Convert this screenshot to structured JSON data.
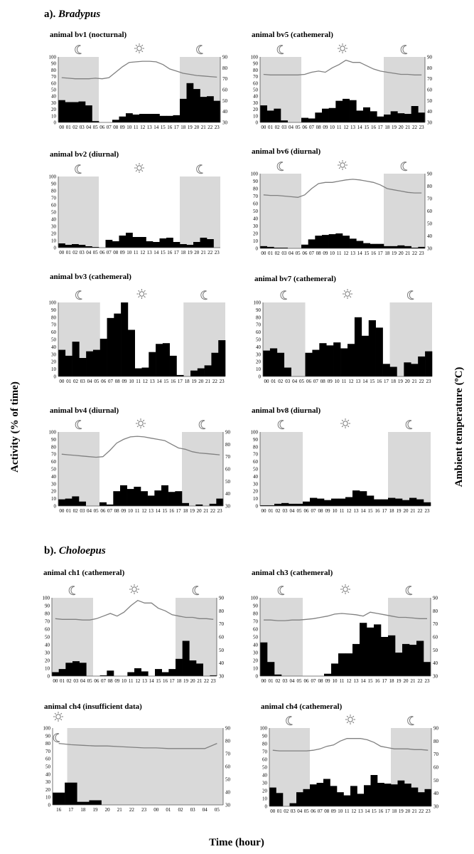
{
  "figure": {
    "y_label_left": "Activity (% of time)",
    "y_label_right": "Ambient temperature (ºC)",
    "x_label": "Time (hour)",
    "sections": [
      {
        "prefix": "a). ",
        "genus": "Bradypus"
      },
      {
        "prefix": "b). ",
        "genus": "Choloepus"
      }
    ]
  },
  "colors": {
    "bar": "#000000",
    "night_shade": "#d9d9d9",
    "temp_line": "#808080",
    "axis": "#555555"
  },
  "icons": {
    "night": "moon-icon",
    "day": "sun-icon"
  },
  "chart_data": [
    {
      "id": "bv1",
      "type": "bar",
      "title": "animal bv1 (nocturnal)",
      "categories": [
        "00",
        "01",
        "02",
        "03",
        "04",
        "05",
        "06",
        "07",
        "08",
        "09",
        "10",
        "11",
        "12",
        "13",
        "14",
        "15",
        "16",
        "17",
        "18",
        "19",
        "20",
        "21",
        "22",
        "23"
      ],
      "values": [
        34,
        31,
        31,
        32,
        26,
        2,
        0,
        0,
        4,
        9,
        14,
        12,
        13,
        13,
        13,
        10,
        10,
        11,
        36,
        60,
        51,
        39,
        40,
        33
      ],
      "temperature": [
        71,
        70.5,
        70,
        70,
        70,
        70.5,
        70,
        71,
        76,
        81,
        85,
        85.5,
        86,
        86,
        85.5,
        83,
        79,
        77,
        75,
        74,
        73,
        72.5,
        72,
        71.5
      ],
      "ylim": [
        0,
        100
      ],
      "y2lim": [
        30,
        90
      ],
      "night": [
        [
          0,
          5
        ],
        [
          18,
          23
        ]
      ]
    },
    {
      "id": "bv5",
      "type": "bar",
      "title": "animal bv5 (cathemeral)",
      "categories": [
        "00",
        "01",
        "02",
        "03",
        "04",
        "05",
        "06",
        "07",
        "08",
        "09",
        "10",
        "11",
        "12",
        "13",
        "14",
        "15",
        "16",
        "17",
        "18",
        "19",
        "20",
        "21",
        "22",
        "23"
      ],
      "values": [
        26,
        18,
        21,
        3,
        0,
        0,
        7,
        6,
        15,
        21,
        22,
        33,
        36,
        34,
        18,
        23,
        17,
        9,
        12,
        17,
        14,
        13,
        25,
        15
      ],
      "temperature": [
        74,
        73.5,
        73.5,
        73.5,
        73.5,
        73.5,
        74,
        76,
        77,
        76,
        80,
        83,
        87,
        85,
        85,
        82,
        79,
        77,
        76,
        75,
        74,
        74,
        73.5,
        73.5
      ],
      "ylim": [
        0,
        100
      ],
      "y2lim": [
        30,
        90
      ],
      "night": [
        [
          0,
          5
        ],
        [
          18,
          23
        ]
      ]
    },
    {
      "id": "bv2",
      "type": "bar",
      "title": "animal bv2 (diurnal)",
      "categories": [
        "00",
        "01",
        "02",
        "03",
        "04",
        "05",
        "06",
        "07",
        "08",
        "09",
        "10",
        "11",
        "12",
        "13",
        "14",
        "15",
        "16",
        "17",
        "18",
        "19",
        "20",
        "21",
        "22",
        "23"
      ],
      "values": [
        6,
        4,
        5,
        4,
        2,
        1,
        0,
        11,
        9,
        17,
        21,
        15,
        15,
        9,
        8,
        13,
        14,
        8,
        5,
        4,
        8,
        14,
        12,
        0
      ],
      "temperature": [],
      "ylim": [
        0,
        100
      ],
      "y2lim": [],
      "night": [
        [
          0,
          5
        ],
        [
          18,
          23
        ]
      ]
    },
    {
      "id": "bv6",
      "type": "bar",
      "title": "animal bv6 (diurnal)",
      "categories": [
        "00",
        "01",
        "02",
        "03",
        "04",
        "05",
        "06",
        "07",
        "08",
        "09",
        "10",
        "11",
        "12",
        "13",
        "14",
        "15",
        "16",
        "17",
        "18",
        "19",
        "20",
        "21",
        "22",
        "23"
      ],
      "values": [
        3,
        2,
        1,
        1,
        0,
        0,
        5,
        12,
        17,
        18,
        19,
        20,
        17,
        13,
        10,
        7,
        6,
        6,
        3,
        3,
        4,
        3,
        1,
        2
      ],
      "temperature": [
        73,
        72.5,
        72.5,
        72,
        71.5,
        71,
        73,
        78,
        82,
        83,
        83,
        84,
        85,
        85.5,
        85,
        84,
        83,
        81,
        78,
        77,
        76,
        75,
        74.5,
        74.5
      ],
      "ylim": [
        0,
        100
      ],
      "y2lim": [
        30,
        90
      ],
      "night": [
        [
          0,
          5
        ],
        [
          18,
          23
        ]
      ]
    },
    {
      "id": "bv3",
      "type": "bar",
      "title": "animal bv3 (cathemeral)",
      "categories": [
        "00",
        "01",
        "02",
        "03",
        "04",
        "05",
        "06",
        "07",
        "08",
        "09",
        "10",
        "11",
        "12",
        "13",
        "14",
        "15",
        "16",
        "17",
        "18",
        "19",
        "20",
        "21",
        "22",
        "23"
      ],
      "values": [
        36,
        28,
        47,
        25,
        34,
        36,
        51,
        79,
        85,
        100,
        63,
        11,
        12,
        33,
        44,
        45,
        28,
        2,
        0,
        8,
        11,
        15,
        32,
        49
      ],
      "temperature": [],
      "ylim": [
        0,
        100
      ],
      "y2lim": [],
      "night": [
        [
          0,
          5
        ],
        [
          18,
          23
        ]
      ]
    },
    {
      "id": "bv7",
      "type": "bar",
      "title": "animal bv7 (cathemeral)",
      "categories": [
        "00",
        "01",
        "02",
        "03",
        "04",
        "05",
        "06",
        "07",
        "08",
        "09",
        "10",
        "11",
        "12",
        "13",
        "14",
        "15",
        "16",
        "17",
        "18",
        "19",
        "20",
        "21",
        "22",
        "23"
      ],
      "values": [
        35,
        38,
        32,
        12,
        0,
        0,
        32,
        36,
        45,
        42,
        46,
        38,
        44,
        80,
        55,
        76,
        66,
        17,
        13,
        0,
        19,
        17,
        27,
        34
      ],
      "temperature": [],
      "ylim": [
        0,
        100
      ],
      "y2lim": [],
      "night": [
        [
          0,
          5
        ],
        [
          18,
          23
        ]
      ]
    },
    {
      "id": "bv4",
      "type": "bar",
      "title": "animal bv4 (diurnal)",
      "categories": [
        "00",
        "01",
        "02",
        "03",
        "04",
        "05",
        "06",
        "07",
        "08",
        "09",
        "10",
        "11",
        "12",
        "13",
        "14",
        "15",
        "16",
        "17",
        "18",
        "19",
        "20",
        "21",
        "22",
        "23"
      ],
      "values": [
        9,
        10,
        13,
        6,
        0,
        0,
        5,
        2,
        20,
        28,
        23,
        26,
        20,
        14,
        21,
        28,
        19,
        20,
        4,
        0,
        2,
        0,
        3,
        10
      ],
      "temperature": [
        72,
        71.5,
        71,
        70.5,
        70,
        69.5,
        70,
        75,
        81,
        84,
        86,
        86.5,
        86,
        85,
        84,
        83,
        80,
        77,
        76,
        74,
        73,
        72.5,
        72,
        71.5
      ],
      "ylim": [
        0,
        100
      ],
      "y2lim": [
        30,
        90
      ],
      "night": [
        [
          0,
          5
        ],
        [
          18,
          23
        ]
      ]
    },
    {
      "id": "bv8",
      "type": "bar",
      "title": "animal bv8 (diurnal)",
      "categories": [
        "00",
        "01",
        "02",
        "03",
        "04",
        "05",
        "06",
        "07",
        "08",
        "09",
        "10",
        "11",
        "12",
        "13",
        "14",
        "15",
        "16",
        "17",
        "18",
        "19",
        "20",
        "21",
        "22",
        "23"
      ],
      "values": [
        1,
        1,
        3,
        4,
        3,
        3,
        6,
        11,
        10,
        8,
        10,
        10,
        12,
        21,
        20,
        14,
        9,
        9,
        11,
        10,
        8,
        11,
        9,
        5
      ],
      "temperature": [],
      "ylim": [
        0,
        100
      ],
      "y2lim": [],
      "night": [
        [
          0,
          5
        ],
        [
          18,
          23
        ]
      ]
    },
    {
      "id": "ch1",
      "type": "bar",
      "title": "animal ch1 (cathemeral)",
      "categories": [
        "00",
        "01",
        "02",
        "03",
        "04",
        "05",
        "06",
        "07",
        "08",
        "09",
        "10",
        "11",
        "12",
        "13",
        "14",
        "15",
        "16",
        "17",
        "18",
        "19",
        "20",
        "21",
        "22",
        "23"
      ],
      "values": [
        5,
        9,
        17,
        19,
        17,
        0,
        0,
        1,
        7,
        0,
        0,
        5,
        10,
        6,
        0,
        9,
        5,
        9,
        22,
        45,
        20,
        16,
        0,
        1
      ],
      "temperature": [
        74,
        73.5,
        73.5,
        73.5,
        73,
        73,
        74,
        76,
        78,
        76,
        79,
        84,
        88,
        86,
        86,
        82,
        80,
        77,
        76,
        75,
        75,
        74,
        74,
        73.5
      ],
      "ylim": [
        0,
        100
      ],
      "y2lim": [
        30,
        90
      ],
      "night": [
        [
          0,
          5
        ],
        [
          18,
          23
        ]
      ]
    },
    {
      "id": "ch3",
      "type": "bar",
      "title": "animal ch3 (cathemeral)",
      "categories": [
        "00",
        "01",
        "02",
        "03",
        "04",
        "05",
        "06",
        "07",
        "08",
        "09",
        "10",
        "11",
        "12",
        "13",
        "14",
        "15",
        "16",
        "17",
        "18",
        "19",
        "20",
        "21",
        "22",
        "23"
      ],
      "values": [
        43,
        18,
        2,
        0,
        0,
        0,
        0,
        0,
        0,
        3,
        16,
        29,
        29,
        41,
        68,
        62,
        66,
        50,
        52,
        30,
        41,
        40,
        45,
        18
      ],
      "temperature": [
        73,
        73,
        72.5,
        72.5,
        73,
        73,
        73.5,
        74,
        75,
        76,
        77.5,
        78,
        77.5,
        77,
        76,
        79,
        78,
        77,
        76,
        75,
        75,
        74.5,
        74,
        74
      ],
      "ylim": [
        0,
        100
      ],
      "y2lim": [
        30,
        90
      ],
      "night": [
        [
          0,
          5
        ],
        [
          18,
          23
        ]
      ]
    },
    {
      "id": "ch4a",
      "type": "bar",
      "title": "animal ch4 (insufficient data)",
      "categories": [
        "16",
        "17",
        "18",
        "19",
        "20",
        "21",
        "22",
        "23",
        "00",
        "01",
        "02",
        "03",
        "04",
        "05"
      ],
      "values": [
        16,
        29,
        4,
        6,
        0,
        0,
        0,
        0,
        0,
        0,
        0,
        0,
        0,
        0
      ],
      "temperature": [
        78,
        77,
        76.5,
        76,
        76,
        75.5,
        75,
        74.5,
        74.5,
        74,
        74,
        74,
        74,
        78
      ],
      "ylim": [
        0,
        100
      ],
      "y2lim": [
        30,
        90
      ],
      "night": [
        [
          1.2,
          13
        ]
      ]
    },
    {
      "id": "ch4b",
      "type": "bar",
      "title": "animal ch4 (cathemeral)",
      "categories": [
        "00",
        "01",
        "02",
        "03",
        "04",
        "05",
        "06",
        "07",
        "08",
        "09",
        "10",
        "11",
        "12",
        "13",
        "14",
        "15",
        "16",
        "17",
        "18",
        "19",
        "20",
        "21",
        "22",
        "23"
      ],
      "values": [
        24,
        17,
        0,
        4,
        18,
        22,
        28,
        30,
        35,
        26,
        18,
        14,
        26,
        16,
        27,
        40,
        30,
        29,
        28,
        33,
        29,
        24,
        18,
        22
      ],
      "temperature": [
        73,
        72.5,
        72.5,
        72.5,
        72.5,
        72.5,
        73,
        74,
        76,
        77,
        80,
        82,
        82,
        82,
        81,
        79,
        76,
        75,
        74,
        74,
        74,
        73.5,
        73.5,
        73
      ],
      "ylim": [
        0,
        100
      ],
      "y2lim": [
        30,
        90
      ],
      "night": [
        [
          0,
          5
        ],
        [
          18,
          23
        ]
      ]
    }
  ]
}
